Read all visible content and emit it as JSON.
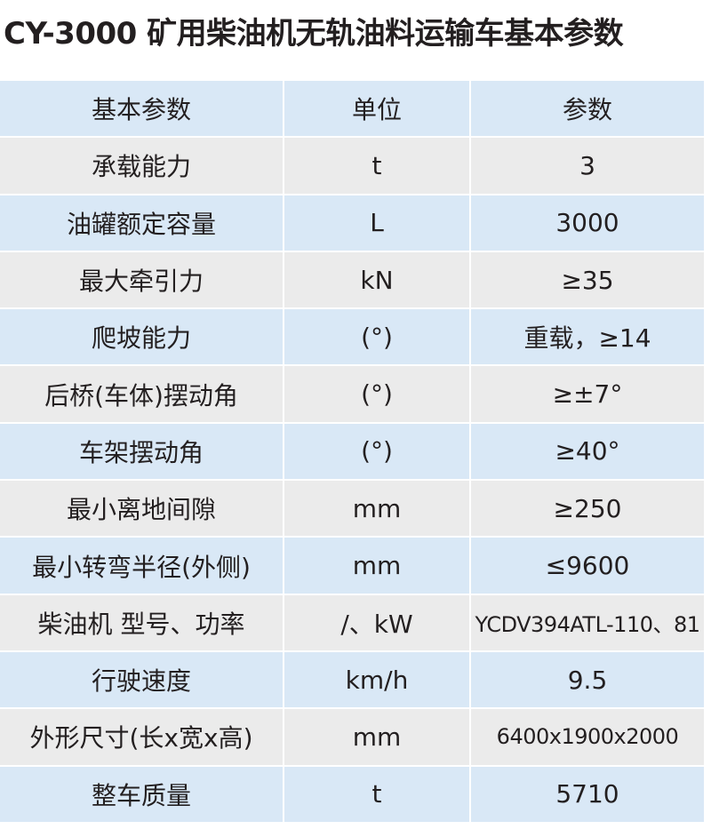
{
  "title": "CY-3000 矿用柴油机无轨油料运输车基本参数",
  "colors": {
    "header_row": "#d9e8f6",
    "alt_row": "#ebebeb"
  },
  "table": {
    "headers": [
      "基本参数",
      "单位",
      "参数"
    ],
    "rows": [
      [
        "承载能力",
        "t",
        "3"
      ],
      [
        "油罐额定容量",
        "L",
        "3000"
      ],
      [
        "最大牵引力",
        "kN",
        "≥35"
      ],
      [
        "爬坡能力",
        "(°)",
        "重载，≥14"
      ],
      [
        "后桥(车体)摆动角",
        "(°)",
        "≥±7°"
      ],
      [
        "车架摆动角",
        "(°)",
        "≥40°"
      ],
      [
        "最小离地间隙",
        "mm",
        "≥250"
      ],
      [
        "最小转弯半径(外侧)",
        "mm",
        "≤9600"
      ],
      [
        "柴油机 型号、功率",
        "/、kW",
        "YCDV394ATL-110、81"
      ],
      [
        "行驶速度",
        "km/h",
        "9.5"
      ],
      [
        "外形尺寸(长x宽x高)",
        "mm",
        "6400x1900x2000"
      ],
      [
        "整车质量",
        "t",
        "5710"
      ]
    ]
  }
}
